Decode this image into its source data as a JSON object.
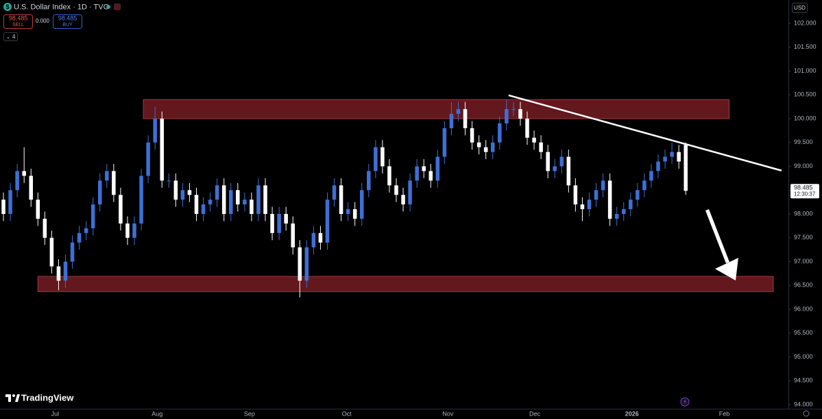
{
  "header": {
    "title": "U.S. Dollar Index · 1D · TVC",
    "sell_price": "98.485",
    "sell_label": "SELL",
    "spread": "0.000",
    "buy_price": "98.485",
    "buy_label": "BUY",
    "indicator_count": "4",
    "currency": "USD"
  },
  "chart_data": {
    "type": "candlestick",
    "open": [
      98.3,
      98.0,
      98.5,
      98.9,
      98.8,
      98.3,
      97.9,
      97.5,
      96.9,
      96.6,
      97.0,
      97.4,
      97.6,
      97.7,
      98.2,
      98.7,
      98.9,
      98.4,
      97.8,
      97.5,
      97.8,
      98.8,
      99.5,
      100.0,
      98.7,
      98.7,
      98.3,
      98.5,
      98.4,
      98.0,
      98.2,
      98.3,
      98.6,
      98.0,
      98.5,
      98.2,
      98.3,
      98.0,
      98.6,
      98.0,
      97.6,
      98.0,
      97.8,
      97.3,
      96.6,
      97.3,
      97.6,
      97.4,
      98.3,
      98.6,
      98.0,
      98.1,
      97.9,
      98.5,
      98.9,
      99.4,
      99.0,
      98.6,
      98.4,
      98.2,
      98.7,
      99.0,
      98.9,
      98.7,
      99.2,
      99.8,
      100.1,
      100.2,
      99.8,
      99.5,
      99.4,
      99.3,
      99.5,
      99.9,
      100.2,
      100.2,
      100.0,
      99.6,
      99.5,
      99.3,
      98.9,
      99.0,
      99.2,
      98.6,
      98.2,
      98.1,
      98.3,
      98.5,
      98.7,
      97.9,
      98.0,
      98.1,
      98.3,
      98.5,
      98.7,
      98.9,
      99.1,
      99.2,
      99.3,
      99.45
    ],
    "high": [
      98.45,
      98.65,
      99.05,
      99.4,
      98.95,
      98.45,
      98.05,
      97.65,
      97.05,
      97.15,
      97.55,
      97.75,
      97.85,
      98.35,
      98.85,
      99.05,
      99.05,
      98.55,
      97.95,
      97.95,
      98.95,
      99.65,
      100.25,
      100.15,
      98.85,
      98.85,
      98.65,
      98.65,
      98.55,
      98.35,
      98.45,
      98.75,
      98.75,
      98.65,
      98.65,
      98.45,
      98.45,
      98.75,
      98.75,
      98.15,
      98.15,
      98.15,
      97.95,
      97.45,
      97.45,
      97.75,
      97.75,
      98.45,
      98.75,
      98.75,
      98.25,
      98.25,
      98.65,
      99.05,
      99.55,
      99.55,
      99.15,
      98.75,
      98.55,
      98.85,
      99.15,
      99.15,
      99.05,
      99.35,
      99.95,
      100.35,
      100.35,
      100.35,
      99.95,
      99.65,
      99.55,
      99.65,
      100.05,
      100.4,
      100.35,
      100.35,
      100.15,
      99.75,
      99.65,
      99.45,
      99.15,
      99.35,
      99.35,
      98.75,
      98.35,
      98.45,
      98.65,
      98.85,
      98.85,
      98.15,
      98.25,
      98.45,
      98.65,
      98.85,
      99.05,
      99.25,
      99.35,
      99.5,
      99.45,
      99.5
    ],
    "low": [
      97.85,
      97.85,
      98.35,
      98.65,
      98.15,
      97.75,
      97.35,
      96.75,
      96.4,
      96.45,
      96.85,
      97.25,
      97.45,
      97.55,
      98.05,
      98.55,
      98.25,
      97.65,
      97.35,
      97.35,
      97.65,
      98.65,
      99.35,
      98.55,
      98.55,
      98.15,
      98.15,
      98.25,
      97.85,
      97.85,
      98.05,
      98.15,
      97.85,
      97.85,
      98.05,
      98.05,
      97.85,
      97.85,
      97.85,
      97.45,
      97.45,
      97.65,
      97.15,
      96.25,
      96.45,
      97.15,
      97.25,
      97.25,
      98.15,
      97.85,
      97.85,
      97.75,
      97.75,
      98.35,
      98.75,
      98.85,
      98.45,
      98.25,
      98.05,
      98.05,
      98.55,
      98.75,
      98.55,
      98.55,
      99.05,
      99.65,
      99.95,
      99.65,
      99.35,
      99.25,
      99.15,
      99.15,
      99.35,
      99.75,
      100.05,
      99.85,
      99.45,
      99.35,
      99.15,
      98.75,
      98.75,
      98.85,
      98.45,
      98.05,
      97.85,
      97.95,
      98.15,
      98.35,
      97.75,
      97.75,
      97.85,
      97.95,
      98.15,
      98.35,
      98.55,
      98.75,
      98.95,
      99.05,
      98.95,
      98.4
    ],
    "close": [
      98.0,
      98.5,
      98.9,
      98.8,
      98.3,
      97.9,
      97.5,
      96.9,
      96.6,
      97.0,
      97.4,
      97.6,
      97.7,
      98.2,
      98.7,
      98.9,
      98.4,
      97.8,
      97.5,
      97.8,
      98.8,
      99.5,
      100.0,
      98.7,
      98.7,
      98.3,
      98.5,
      98.4,
      98.0,
      98.2,
      98.3,
      98.6,
      98.0,
      98.5,
      98.2,
      98.3,
      98.0,
      98.6,
      98.0,
      97.6,
      98.0,
      97.8,
      97.3,
      96.6,
      97.3,
      97.6,
      97.4,
      98.3,
      98.6,
      98.0,
      98.1,
      97.9,
      98.5,
      98.9,
      99.4,
      99.0,
      98.6,
      98.4,
      98.2,
      98.7,
      99.0,
      98.9,
      98.7,
      99.2,
      99.8,
      100.1,
      100.2,
      99.8,
      99.5,
      99.4,
      99.3,
      99.5,
      99.9,
      100.2,
      100.2,
      100.0,
      99.6,
      99.5,
      99.3,
      98.9,
      99.0,
      99.2,
      98.6,
      98.2,
      98.1,
      98.3,
      98.5,
      98.7,
      97.9,
      98.0,
      98.1,
      98.3,
      98.5,
      98.7,
      98.9,
      99.1,
      99.2,
      99.3,
      99.1,
      98.485
    ],
    "up_color": "#3d6fd6",
    "down_color": "#ffffff",
    "xlim": [
      -0.5,
      113.9
    ],
    "xticks": [
      {
        "value": 7.5,
        "label": "Jul"
      },
      {
        "value": 22.3,
        "label": "Aug"
      },
      {
        "value": 35.7,
        "label": "Sep"
      },
      {
        "value": 49.8,
        "label": "Oct"
      },
      {
        "value": 64.5,
        "label": "Nov"
      },
      {
        "value": 77.1,
        "label": "Dec"
      },
      {
        "value": 91.2,
        "label": "2026"
      },
      {
        "value": 104.6,
        "label": "Feb"
      }
    ],
    "ylim": [
      93.914,
      102.489
    ],
    "yticks": [
      {
        "value": 94,
        "label": "94.000"
      },
      {
        "value": 94.5,
        "label": "94.500"
      },
      {
        "value": 95,
        "label": "95.000"
      },
      {
        "value": 95.5,
        "label": "95.500"
      },
      {
        "value": 96,
        "label": "96.000"
      },
      {
        "value": 96.5,
        "label": "96.500"
      },
      {
        "value": 97,
        "label": "97.000"
      },
      {
        "value": 97.5,
        "label": "97.500"
      },
      {
        "value": 98,
        "label": "98.000"
      },
      {
        "value": 98.5,
        "label": "98.500"
      },
      {
        "value": 99,
        "label": "99.000"
      },
      {
        "value": 99.5,
        "label": "99.500"
      },
      {
        "value": 100,
        "label": "100.000"
      },
      {
        "value": 100.5,
        "label": "100.500"
      },
      {
        "value": 101,
        "label": "101.000"
      },
      {
        "value": 101.5,
        "label": "101.500"
      },
      {
        "value": 102,
        "label": "102.000"
      }
    ],
    "last_price": 98.485,
    "countdown": "12:30:37",
    "zones": [
      {
        "x": [
          20.3,
          105.3
        ],
        "y": [
          100.0,
          100.4
        ]
      },
      {
        "x": [
          5.0,
          111.7
        ],
        "y": [
          96.37,
          96.69
        ]
      }
    ],
    "trendline": {
      "x": [
        73.3,
        112.9
      ],
      "y": [
        100.49,
        98.91
      ]
    }
  },
  "branding": "TradingView"
}
